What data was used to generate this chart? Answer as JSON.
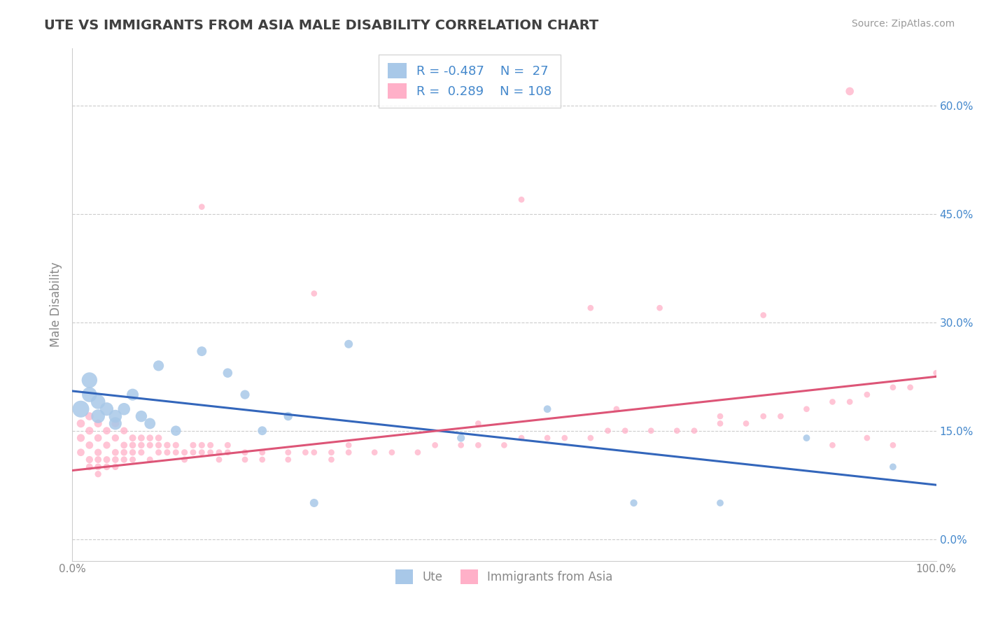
{
  "title": "UTE VS IMMIGRANTS FROM ASIA MALE DISABILITY CORRELATION CHART",
  "source_text": "Source: ZipAtlas.com",
  "ylabel": "Male Disability",
  "xlim": [
    0,
    100
  ],
  "ylim": [
    -3,
    68
  ],
  "yticks": [
    0,
    15,
    30,
    45,
    60
  ],
  "ytick_labels": [
    "0.0%",
    "15.0%",
    "30.0%",
    "45.0%",
    "60.0%"
  ],
  "xticks": [
    0,
    100
  ],
  "xtick_labels": [
    "0.0%",
    "100.0%"
  ],
  "blue_color": "#A8C8E8",
  "pink_color": "#FFB0C8",
  "blue_line_color": "#3366BB",
  "pink_line_color": "#DD5577",
  "title_color": "#404040",
  "source_color": "#999999",
  "legend_text_color": "#4488CC",
  "axis_tick_color": "#4488CC",
  "axis_label_color": "#888888",
  "grid_color": "#CCCCCC",
  "background_color": "#FFFFFF",
  "blue_line_x": [
    0,
    100
  ],
  "blue_line_y": [
    20.5,
    7.5
  ],
  "pink_line_x": [
    0,
    100
  ],
  "pink_line_y": [
    9.5,
    22.5
  ],
  "ute_x": [
    1,
    2,
    2,
    3,
    3,
    4,
    5,
    5,
    6,
    7,
    8,
    9,
    10,
    12,
    15,
    18,
    20,
    22,
    25,
    28,
    32,
    45,
    55,
    65,
    75,
    85,
    95
  ],
  "ute_y": [
    18,
    22,
    20,
    19,
    17,
    18,
    17,
    16,
    18,
    20,
    17,
    16,
    24,
    15,
    26,
    23,
    20,
    15,
    17,
    5,
    27,
    14,
    18,
    5,
    5,
    14,
    10
  ],
  "ute_sizes": [
    300,
    260,
    240,
    220,
    200,
    190,
    180,
    170,
    160,
    150,
    140,
    130,
    120,
    110,
    100,
    95,
    90,
    85,
    80,
    75,
    75,
    65,
    60,
    55,
    50,
    50,
    50
  ],
  "asia_x": [
    1,
    1,
    1,
    2,
    2,
    2,
    2,
    2,
    3,
    3,
    3,
    3,
    3,
    3,
    4,
    4,
    4,
    4,
    5,
    5,
    5,
    5,
    5,
    6,
    6,
    6,
    6,
    7,
    7,
    7,
    7,
    8,
    8,
    8,
    9,
    9,
    9,
    10,
    10,
    10,
    11,
    11,
    12,
    12,
    13,
    13,
    14,
    14,
    15,
    15,
    16,
    16,
    17,
    17,
    18,
    18,
    20,
    20,
    22,
    22,
    25,
    25,
    27,
    28,
    30,
    30,
    32,
    35,
    37,
    40,
    42,
    45,
    47,
    50,
    52,
    55,
    57,
    60,
    62,
    64,
    67,
    70,
    72,
    75,
    78,
    80,
    82,
    85,
    88,
    90,
    92,
    95,
    97,
    100,
    52,
    68,
    80,
    90,
    60,
    32,
    15,
    28,
    47,
    63,
    75,
    88,
    92,
    95
  ],
  "asia_y": [
    16,
    14,
    12,
    17,
    15,
    13,
    11,
    10,
    16,
    14,
    12,
    11,
    10,
    9,
    15,
    13,
    11,
    10,
    16,
    14,
    12,
    11,
    10,
    15,
    13,
    12,
    11,
    14,
    13,
    12,
    11,
    14,
    13,
    12,
    14,
    13,
    11,
    14,
    13,
    12,
    13,
    12,
    13,
    12,
    12,
    11,
    13,
    12,
    13,
    12,
    13,
    12,
    12,
    11,
    13,
    12,
    12,
    11,
    12,
    11,
    12,
    11,
    12,
    12,
    12,
    11,
    12,
    12,
    12,
    12,
    13,
    13,
    13,
    13,
    14,
    14,
    14,
    14,
    15,
    15,
    15,
    15,
    15,
    16,
    16,
    17,
    17,
    18,
    19,
    19,
    20,
    21,
    21,
    23,
    47,
    32,
    31,
    62,
    32,
    13,
    46,
    34,
    16,
    18,
    17,
    13,
    14,
    13
  ],
  "asia_sizes": [
    70,
    65,
    60,
    70,
    65,
    60,
    55,
    50,
    65,
    60,
    55,
    50,
    48,
    45,
    60,
    55,
    50,
    48,
    60,
    55,
    50,
    48,
    45,
    55,
    50,
    48,
    45,
    52,
    48,
    45,
    42,
    50,
    46,
    43,
    48,
    44,
    42,
    48,
    44,
    42,
    46,
    43,
    44,
    41,
    43,
    41,
    43,
    41,
    43,
    41,
    42,
    40,
    41,
    40,
    42,
    40,
    41,
    40,
    40,
    39,
    40,
    39,
    40,
    39,
    40,
    39,
    40,
    39,
    39,
    39,
    39,
    39,
    39,
    39,
    39,
    39,
    39,
    39,
    39,
    39,
    39,
    39,
    39,
    39,
    39,
    39,
    39,
    39,
    39,
    39,
    39,
    39,
    39,
    39,
    39,
    39,
    39,
    70,
    39,
    39,
    39,
    39,
    39,
    39,
    39,
    39,
    39,
    39
  ]
}
